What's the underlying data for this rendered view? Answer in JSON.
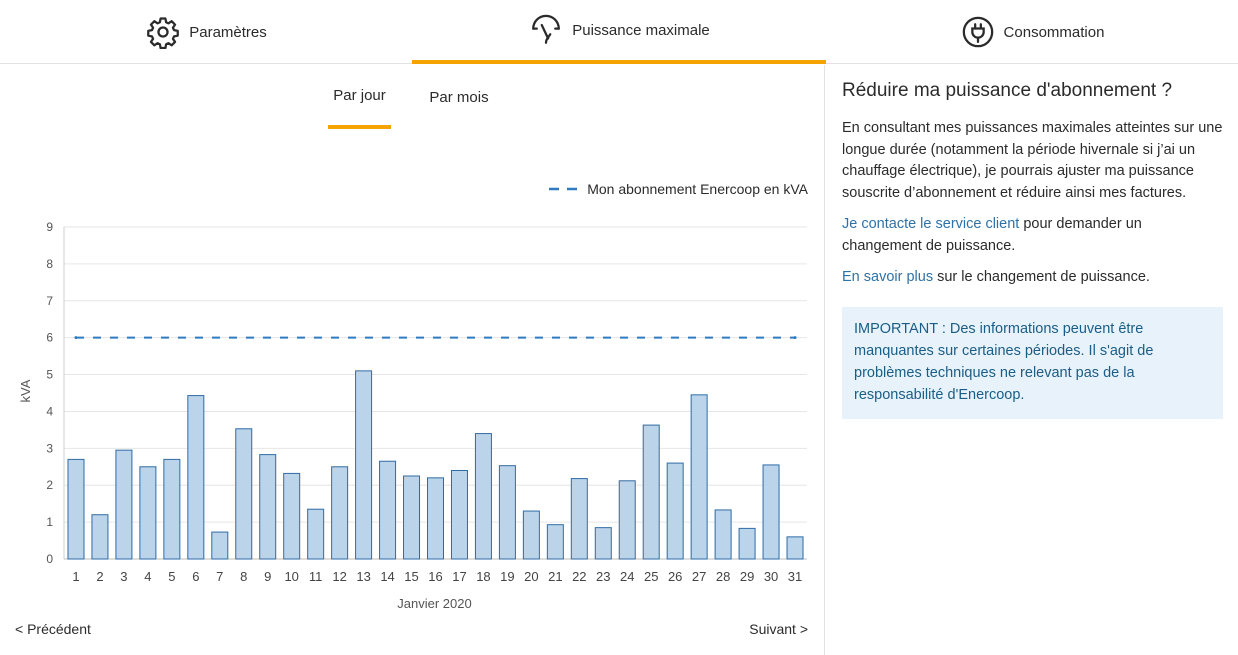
{
  "tabs": [
    {
      "label": "Paramètres",
      "icon": "gear-icon"
    },
    {
      "label": "Puissance maximale",
      "icon": "gauge-icon"
    },
    {
      "label": "Consommation",
      "icon": "plug-icon"
    }
  ],
  "active_tab": 1,
  "subtabs": {
    "day": "Par jour",
    "month": "Par mois"
  },
  "active_subtab": "day",
  "accent_color": "#f5a300",
  "link_color": "#2f72a8",
  "chart_data": {
    "type": "bar",
    "categories": [
      "1",
      "2",
      "3",
      "4",
      "5",
      "6",
      "7",
      "8",
      "9",
      "10",
      "11",
      "12",
      "13",
      "14",
      "15",
      "16",
      "17",
      "18",
      "19",
      "20",
      "21",
      "22",
      "23",
      "24",
      "25",
      "26",
      "27",
      "28",
      "29",
      "30",
      "31"
    ],
    "values": [
      2.7,
      1.2,
      2.95,
      2.5,
      2.7,
      4.43,
      0.73,
      3.53,
      2.83,
      2.32,
      1.35,
      2.5,
      5.1,
      2.65,
      2.25,
      2.2,
      2.4,
      3.4,
      2.53,
      1.3,
      0.93,
      2.18,
      0.85,
      2.12,
      3.63,
      2.6,
      4.45,
      1.33,
      0.83,
      2.55,
      0.6
    ],
    "reference_line": {
      "name": "Mon abonnement Enercoop en kVA",
      "value": 6,
      "style": "dashed"
    },
    "xlabel": "Janvier 2020",
    "ylabel": "kVA",
    "ylim": [
      0,
      9
    ],
    "yticks": [
      0,
      1,
      2,
      3,
      4,
      5,
      6,
      7,
      8,
      9
    ],
    "grid": true,
    "legend_position": "top-right",
    "bar_fill": "#bcd4ea",
    "bar_stroke": "#2e6ba4",
    "line_color": "#2e7bc4"
  },
  "pager": {
    "prev": "< Précédent",
    "next": "Suivant >"
  },
  "side": {
    "title": "Réduire ma puissance d'abonnement ?",
    "paragraph1": "En consultant mes puissances maximales atteintes sur une longue durée (notamment la période hivernale si j’ai un chauffage électrique), je pourrais ajuster ma puissance souscrite d’abonnement et réduire ainsi mes factures.",
    "contact_link": "Je contacte le service client",
    "contact_rest": " pour demander un changement de puissance.",
    "more_link": "En savoir plus",
    "more_rest": " sur le changement de puissance.",
    "notice": "IMPORTANT : Des informations peuvent être manquantes sur certaines périodes. Il s'agit de problèmes techniques ne relevant pas de la responsabilité d'Enercoop."
  }
}
